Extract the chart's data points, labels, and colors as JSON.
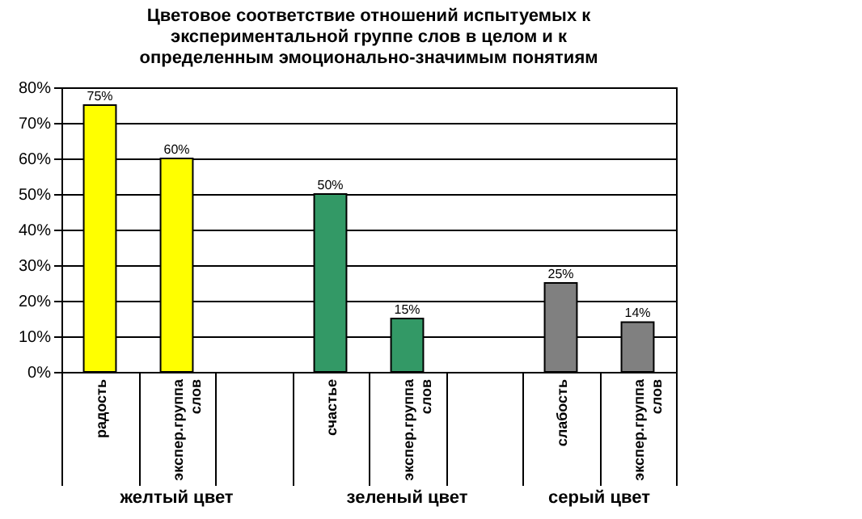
{
  "chart_data": {
    "type": "bar",
    "title": "Цветовое соответствие отношений испытуемых к экспериментальной группе слов в целом и к определенным эмоционально-значимым понятиям",
    "categories": [
      "радость",
      "экспер.группа слов",
      null,
      "счастье",
      "экспер.группа слов",
      null,
      "слабость",
      "экспер.группа слов"
    ],
    "values": [
      75,
      60,
      null,
      50,
      15,
      null,
      25,
      14
    ],
    "colors": [
      "#ffff00",
      "#ffff00",
      "#ffffff",
      "#339966",
      "#339966",
      "#ffffff",
      "#808080",
      "#808080"
    ],
    "value_labels": [
      "75%",
      "60%",
      null,
      "50%",
      "15%",
      null,
      "25%",
      "14%"
    ],
    "ylim": [
      0,
      80
    ],
    "yticks": [
      {
        "value": 0,
        "label": "0%"
      },
      {
        "value": 10,
        "label": "10%"
      },
      {
        "value": 20,
        "label": "20%"
      },
      {
        "value": 30,
        "label": "30%"
      },
      {
        "value": 40,
        "label": "40%"
      },
      {
        "value": 50,
        "label": "50%"
      },
      {
        "value": 60,
        "label": "60%"
      },
      {
        "value": 70,
        "label": "70%"
      },
      {
        "value": 80,
        "label": "80%"
      }
    ],
    "grid": "y",
    "annotations": [
      "желтый цвет",
      "зеленый цвет",
      "серый цвет"
    ]
  }
}
